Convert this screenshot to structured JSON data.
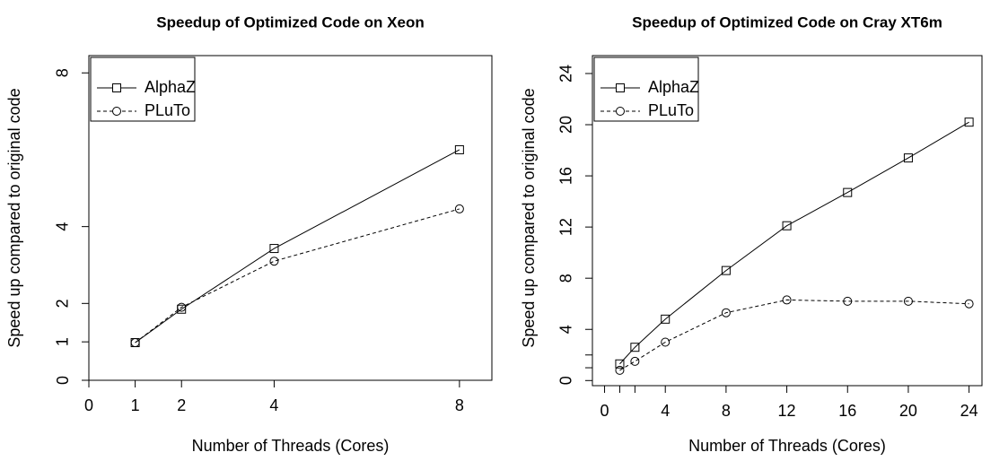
{
  "chart_data": [
    {
      "type": "line",
      "title": "Speedup of Optimized Code on Xeon",
      "x_label": "Number of Threads (Cores)",
      "y_label": "Speed up compared to original code",
      "x": [
        1,
        2,
        4,
        8
      ],
      "xlim": [
        0,
        8.7
      ],
      "ylim": [
        0,
        8.45
      ],
      "xticks": [
        0,
        1,
        2,
        4,
        8
      ],
      "yticks": [
        0,
        1,
        2,
        4,
        8
      ],
      "legend": "top-left",
      "series": [
        {
          "name": "AlphaZ",
          "color": "#000000",
          "linestyle": "solid",
          "marker": "square",
          "values": [
            0.98,
            1.85,
            3.43,
            6.0
          ]
        },
        {
          "name": "PLuTo",
          "color": "#000000",
          "linestyle": "dashed",
          "marker": "circle",
          "values": [
            0.98,
            1.9,
            3.1,
            4.46
          ]
        }
      ]
    },
    {
      "type": "line",
      "title": "Speedup of Optimized Code on Cray XT6m",
      "x_label": "Number of Threads (Cores)",
      "y_label": "Speed up compared to original code",
      "x": [
        1,
        2,
        4,
        8,
        12,
        16,
        20,
        24
      ],
      "xlim": [
        -0.8,
        24.85
      ],
      "ylim": [
        -0.4,
        25.4
      ],
      "xticks": [
        0,
        4,
        8,
        12,
        16,
        20,
        24
      ],
      "yticks": [
        0,
        4,
        8,
        12,
        16,
        20,
        24
      ],
      "xminorticks": [
        1,
        2
      ],
      "yminorticks": [
        1,
        2
      ],
      "legend": "top-left",
      "series": [
        {
          "name": "AlphaZ",
          "color": "#000000",
          "linestyle": "solid",
          "marker": "square",
          "values": [
            1.3,
            2.6,
            4.8,
            8.6,
            12.1,
            14.7,
            17.4,
            20.2
          ]
        },
        {
          "name": "PLuTo",
          "color": "#000000",
          "linestyle": "dashed",
          "marker": "circle",
          "values": [
            0.8,
            1.5,
            3.0,
            5.3,
            6.3,
            6.2,
            6.2,
            6.0
          ]
        }
      ]
    }
  ]
}
